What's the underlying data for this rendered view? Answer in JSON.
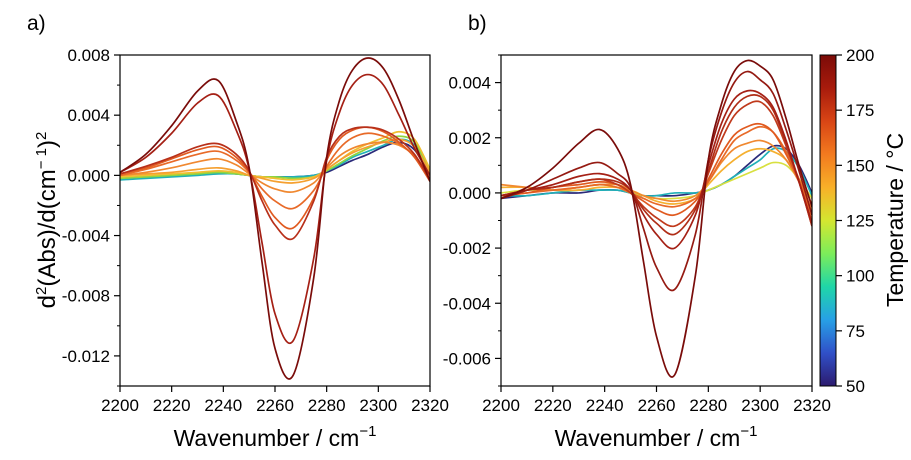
{
  "figure": {
    "ylabel_main": "d",
    "ylabel_sup1": "2",
    "ylabel_mid": "(Abs)/d(cm",
    "ylabel_sup2": "− 1",
    "ylabel_close": ")",
    "ylabel_sup3": "2",
    "colorbar": {
      "label": "Temperature / °C",
      "ticks": [
        "50",
        "75",
        "100",
        "125",
        "150",
        "175",
        "200"
      ],
      "range": [
        50,
        200
      ],
      "colors": [
        "#2c1b6e",
        "#3050c8",
        "#27a0e6",
        "#1fd6a8",
        "#7ced5a",
        "#d4e630",
        "#f8b028",
        "#f27a1f",
        "#d84515",
        "#a81b0c",
        "#7b0b08"
      ]
    }
  },
  "chart_data": [
    {
      "type": "line",
      "panel_label": "a)",
      "xlabel": "Wavenumber / cm",
      "xlabel_sup": "−1",
      "xlim": [
        2200,
        2320
      ],
      "ylim": [
        -0.014,
        0.008
      ],
      "xticks": [
        "2200",
        "2220",
        "2240",
        "2260",
        "2280",
        "2300",
        "2320"
      ],
      "yticks": [
        "0.008",
        "0.004",
        "0.000",
        "-0.004",
        "-0.008",
        "-0.012"
      ],
      "ytick_values": [
        0.008,
        0.004,
        0.0,
        -0.004,
        -0.008,
        -0.012
      ],
      "x": [
        2200,
        2210,
        2220,
        2230,
        2238,
        2245,
        2250,
        2255,
        2260,
        2267,
        2275,
        2280,
        2285,
        2290,
        2296,
        2302,
        2308,
        2314,
        2320
      ],
      "series": [
        {
          "color": "#2a2a7a",
          "values": [
            -0.0002,
            -0.0001,
            0.0,
            0.0001,
            0.0002,
            0.0001,
            0.0,
            -0.0001,
            -0.0001,
            -0.0001,
            0.0,
            0.0002,
            0.0006,
            0.001,
            0.0014,
            0.0019,
            0.0022,
            0.0017,
            0.0
          ]
        },
        {
          "color": "#20b0b8",
          "values": [
            -0.0003,
            -0.0002,
            -0.0001,
            0.0,
            0.0001,
            0.0001,
            0.0,
            -0.0001,
            -0.0001,
            -0.0001,
            0.0,
            0.0003,
            0.0007,
            0.0012,
            0.0016,
            0.002,
            0.0024,
            0.002,
            0.0002
          ]
        },
        {
          "color": "#8fd640",
          "values": [
            -0.0002,
            -0.0001,
            0.0,
            0.0001,
            0.0002,
            0.0001,
            0.0,
            -0.0001,
            -0.0001,
            -0.0002,
            -0.0001,
            0.0003,
            0.0008,
            0.0013,
            0.0018,
            0.0023,
            0.0026,
            0.0022,
            0.0003
          ]
        },
        {
          "color": "#f0c030",
          "values": [
            -0.0001,
            0.0,
            0.0001,
            0.0002,
            0.0003,
            0.0002,
            0.0,
            -0.0001,
            -0.0002,
            -0.0003,
            -0.0001,
            0.0004,
            0.001,
            0.0016,
            0.0021,
            0.0025,
            0.0029,
            0.0024,
            0.0004
          ]
        },
        {
          "color": "#f5a030",
          "values": [
            0.0,
            0.0001,
            0.0002,
            0.0004,
            0.0005,
            0.0003,
            0.0,
            -0.0002,
            -0.0004,
            -0.0005,
            -0.0002,
            0.0004,
            0.001,
            0.0015,
            0.0019,
            0.0022,
            0.0024,
            0.0019,
            0.0002
          ]
        },
        {
          "color": "#f08830",
          "values": [
            0.0,
            0.0002,
            0.0005,
            0.0009,
            0.0011,
            0.0007,
            0.0001,
            -0.0005,
            -0.0009,
            -0.0011,
            -0.0005,
            0.0005,
            0.0013,
            0.0018,
            0.0021,
            0.0022,
            0.002,
            0.0013,
            0.0
          ]
        },
        {
          "color": "#e86a28",
          "values": [
            0.0,
            0.0004,
            0.0009,
            0.0014,
            0.0016,
            0.001,
            0.0002,
            -0.0009,
            -0.0017,
            -0.0022,
            -0.001,
            0.0006,
            0.0018,
            0.0025,
            0.0028,
            0.0026,
            0.0021,
            0.0013,
            -0.0002
          ]
        },
        {
          "color": "#e05a20",
          "values": [
            0.0001,
            0.0005,
            0.0011,
            0.0017,
            0.0019,
            0.0012,
            0.0002,
            -0.0014,
            -0.0028,
            -0.0035,
            -0.0015,
            0.001,
            0.0024,
            0.003,
            0.0032,
            0.0029,
            0.0022,
            0.0012,
            -0.0004
          ]
        },
        {
          "color": "#b8301a",
          "values": [
            0.0001,
            0.0006,
            0.0012,
            0.0019,
            0.0021,
            0.0014,
            0.0003,
            -0.0017,
            -0.0033,
            -0.0042,
            -0.0017,
            0.0012,
            0.0026,
            0.0031,
            0.0032,
            0.003,
            0.0024,
            0.0014,
            -0.0003
          ]
        },
        {
          "color": "#a52015",
          "values": [
            0.0002,
            0.0012,
            0.0028,
            0.0048,
            0.0053,
            0.003,
            0.0004,
            -0.0045,
            -0.0092,
            -0.011,
            -0.0055,
            0.001,
            0.0042,
            0.006,
            0.0067,
            0.006,
            0.004,
            0.0018,
            0.0
          ]
        },
        {
          "color": "#7a0c0a",
          "values": [
            0.0002,
            0.0014,
            0.0033,
            0.0056,
            0.0063,
            0.0036,
            0.0005,
            -0.0058,
            -0.0115,
            -0.0133,
            -0.0068,
            0.0012,
            0.005,
            0.007,
            0.0078,
            0.0071,
            0.005,
            0.0022,
            -0.0004
          ]
        }
      ]
    },
    {
      "type": "line",
      "panel_label": "b)",
      "xlabel": "Wavenumber / cm",
      "xlabel_sup": "−1",
      "xlim": [
        2200,
        2320
      ],
      "ylim": [
        -0.007,
        0.005
      ],
      "xticks": [
        "2200",
        "2220",
        "2240",
        "2260",
        "2280",
        "2300",
        "2320"
      ],
      "yticks": [
        "0.004",
        "0.002",
        "0.000",
        "-0.002",
        "-0.004",
        "-0.006"
      ],
      "ytick_values": [
        0.004,
        0.002,
        0.0,
        -0.002,
        -0.004,
        -0.006
      ],
      "x": [
        2200,
        2210,
        2220,
        2230,
        2238,
        2245,
        2250,
        2255,
        2260,
        2267,
        2275,
        2280,
        2285,
        2290,
        2295,
        2300,
        2305,
        2310,
        2315,
        2320
      ],
      "series": [
        {
          "color": "#2a2a7a",
          "values": [
            -0.0002,
            -0.0001,
            0.0,
            0.0,
            0.0001,
            0.0001,
            0.0,
            -0.0001,
            -0.0001,
            -0.0001,
            0.0,
            0.0001,
            0.0003,
            0.0006,
            0.001,
            0.0014,
            0.0017,
            0.0016,
            0.001,
            0.0
          ]
        },
        {
          "color": "#20b0b8",
          "values": [
            -0.0001,
            -0.0001,
            0.0,
            0.0001,
            0.0001,
            0.0001,
            0.0,
            -0.0001,
            -0.0001,
            0.0,
            0.0,
            0.0001,
            0.0003,
            0.0006,
            0.0009,
            0.0012,
            0.0016,
            0.0015,
            0.0009,
            -0.0001
          ]
        },
        {
          "color": "#d8e040",
          "values": [
            0.0,
            0.0001,
            0.0001,
            0.0002,
            0.0003,
            0.0002,
            0.0,
            -0.0001,
            -0.0002,
            -0.0002,
            -0.0001,
            0.0001,
            0.0003,
            0.0005,
            0.0007,
            0.0009,
            0.0011,
            0.001,
            0.0005,
            -0.0002
          ]
        },
        {
          "color": "#f5b030",
          "values": [
            0.0002,
            0.0002,
            0.0001,
            0.0001,
            0.0002,
            0.0002,
            0.0001,
            -0.0001,
            -0.0003,
            -0.0004,
            -0.0002,
            0.0003,
            0.0008,
            0.0012,
            0.0015,
            0.0016,
            0.0015,
            0.0012,
            0.0005,
            -0.0004
          ]
        },
        {
          "color": "#f08830",
          "values": [
            0.0003,
            0.0002,
            0.0001,
            0.0002,
            0.0003,
            0.0003,
            0.0001,
            -0.0001,
            -0.0002,
            -0.0003,
            -0.0001,
            0.0004,
            0.0011,
            0.0016,
            0.0018,
            0.0019,
            0.0017,
            0.0012,
            0.0004,
            -0.0006
          ]
        },
        {
          "color": "#e86a28",
          "values": [
            -0.0001,
            0.0,
            0.0001,
            0.0002,
            0.0003,
            0.0002,
            0.0,
            -0.0002,
            -0.0004,
            -0.0005,
            -0.0002,
            0.0004,
            0.0012,
            0.0019,
            0.0022,
            0.0024,
            0.0022,
            0.0015,
            0.0005,
            -0.0008
          ]
        },
        {
          "color": "#e05a20",
          "values": [
            -0.0001,
            0.0,
            0.0002,
            0.0003,
            0.0004,
            0.0003,
            0.0,
            -0.0003,
            -0.0006,
            -0.0008,
            -0.0003,
            0.0005,
            0.0014,
            0.0021,
            0.0024,
            0.0025,
            0.0022,
            0.0014,
            0.0004,
            -0.001
          ]
        },
        {
          "color": "#c03a1c",
          "values": [
            -0.0001,
            0.0001,
            0.0002,
            0.0004,
            0.0005,
            0.0003,
            0.0,
            -0.0005,
            -0.0009,
            -0.0012,
            -0.0005,
            0.0007,
            0.0019,
            0.0028,
            0.0032,
            0.0033,
            0.0028,
            0.0017,
            0.0004,
            -0.0012
          ]
        },
        {
          "color": "#b02e18",
          "values": [
            -0.0001,
            0.0001,
            0.0002,
            0.0004,
            0.0005,
            0.0004,
            0.0001,
            -0.0006,
            -0.0011,
            -0.0015,
            -0.0006,
            0.0008,
            0.0022,
            0.0031,
            0.0035,
            0.0035,
            0.003,
            0.0018,
            0.0004,
            -0.0012
          ]
        },
        {
          "color": "#a52015",
          "values": [
            -0.0001,
            0.0001,
            0.0003,
            0.0006,
            0.0007,
            0.0005,
            0.0001,
            -0.0008,
            -0.0015,
            -0.002,
            -0.0008,
            0.001,
            0.0025,
            0.0034,
            0.0037,
            0.0036,
            0.0031,
            0.0019,
            0.0004,
            -0.0011
          ]
        },
        {
          "color": "#951a12",
          "values": [
            -0.0002,
            0.0001,
            0.0005,
            0.0009,
            0.0011,
            0.0007,
            0.0002,
            -0.0013,
            -0.0027,
            -0.0035,
            -0.0015,
            0.0012,
            0.0029,
            0.004,
            0.0044,
            0.0041,
            0.0036,
            0.0023,
            0.0008,
            -0.0008
          ]
        },
        {
          "color": "#7a0c0a",
          "values": [
            -0.0002,
            0.0002,
            0.0009,
            0.0018,
            0.0023,
            0.0016,
            0.0003,
            -0.0025,
            -0.0052,
            -0.0066,
            -0.003,
            0.0012,
            0.0032,
            0.0044,
            0.0048,
            0.0046,
            0.0041,
            0.0027,
            0.001,
            -0.0005
          ]
        }
      ]
    }
  ]
}
